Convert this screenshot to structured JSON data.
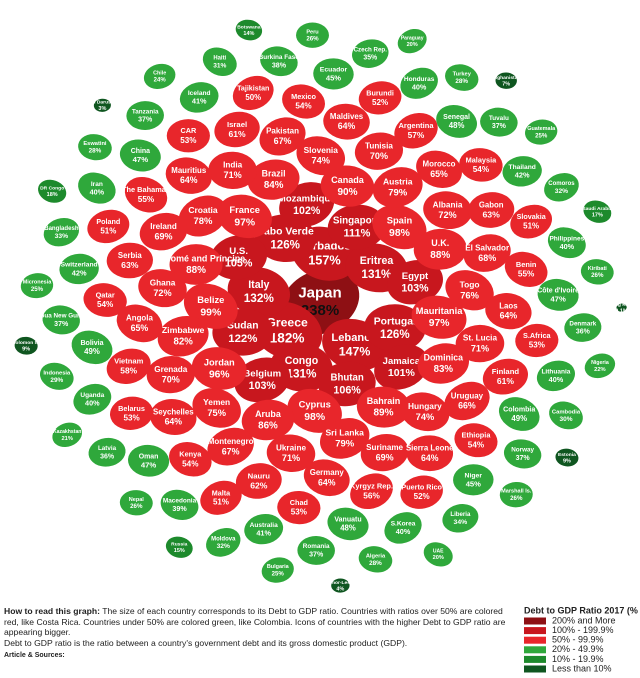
{
  "chart_data": {
    "type": "packed-shapes",
    "legend_title": "Debt to GDP Ratio 2017 (%",
    "series": [
      {
        "name": "200% and More",
        "color": "#8e1014",
        "categories": [
          "Japan"
        ],
        "values": [
          238
        ],
        "value_labels": [
          "238%"
        ]
      },
      {
        "name": "100% - 199.9%",
        "color": "#c8171e",
        "categories": [
          "Greece",
          "Barbados",
          "Lebanon",
          "Italy",
          "Eritrea",
          "Congo",
          "Cabo Verde",
          "Portugal",
          "Sudan",
          "Singapore",
          "Bhutan",
          "U.S.",
          "Egypt",
          "Belgium",
          "Mozambique",
          "Jamaica"
        ],
        "values": [
          182,
          157,
          147,
          132,
          131,
          131,
          126,
          126,
          122,
          111,
          106,
          105,
          103,
          103,
          102,
          101
        ],
        "value_labels": [
          "182%",
          "157%",
          "147%",
          "132%",
          "131%",
          "131%",
          "126%",
          "126%",
          "122%",
          "111%",
          "106%",
          "105%",
          "103%",
          "103%",
          "102%",
          "101%"
        ]
      },
      {
        "name": "50% - 99.9%",
        "color": "#e8262b",
        "categories": [
          "Belize",
          "Spain",
          "Cyprus",
          "France",
          "Mauritania",
          "Jordan",
          "Canada",
          "Bahrain",
          "São Tomé and Príncipe",
          "U.K.",
          "Aruba",
          "Brazil",
          "Dominica",
          "Zimbabwe",
          "Austria",
          "Sri Lanka",
          "Croatia",
          "Togo",
          "Yemen",
          "Slovenia",
          "Hungary",
          "Ghana",
          "Albania",
          "Ukraine",
          "India",
          "St. Lucia",
          "Grenada",
          "Tunisia",
          "Suriname",
          "Ireland",
          "El Salvador",
          "Montenegro",
          "Pakistan",
          "Uruguay",
          "Angola",
          "Morocco",
          "Germany",
          "Mauritius",
          "Laos",
          "Seychelles",
          "Maldives",
          "Sierra Leone",
          "Serbia",
          "Gabon",
          "Nauru",
          "Israel",
          "Finland",
          "Vietnam",
          "Argentina",
          "Kyrgyz Rep.",
          "The Bahamas",
          "Benin",
          "Kenya",
          "Mexico",
          "Ethiopia",
          "Qatar",
          "Malaysia",
          "Chad",
          "CAR",
          "S.Africa",
          "Belarus",
          "Burundi",
          "Puerto Rico",
          "Poland",
          "Slovakia",
          "Malta",
          "Tajikistan"
        ],
        "values": [
          99,
          98,
          98,
          97,
          97,
          96,
          90,
          89,
          88,
          88,
          86,
          84,
          83,
          82,
          79,
          79,
          78,
          76,
          75,
          74,
          74,
          72,
          72,
          71,
          71,
          71,
          70,
          70,
          69,
          69,
          68,
          67,
          67,
          66,
          65,
          65,
          64,
          64,
          64,
          64,
          64,
          64,
          63,
          63,
          62,
          61,
          61,
          58,
          57,
          56,
          55,
          55,
          54,
          54,
          54,
          54,
          54,
          53,
          53,
          53,
          53,
          52,
          52,
          51,
          51,
          51,
          50
        ],
        "value_labels": [
          "99%",
          "98%",
          "98%",
          "97%",
          "97%",
          "96%",
          "90%",
          "89%",
          "88%",
          "88%",
          "86%",
          "84%",
          "83%",
          "82%",
          "79%",
          "79%",
          "78%",
          "76%",
          "75%",
          "74%",
          "74%",
          "72%",
          "72%",
          "71%",
          "71%",
          "71%",
          "70%",
          "70%",
          "69%",
          "69%",
          "68%",
          "67%",
          "67%",
          "66%",
          "65%",
          "65%",
          "64%",
          "64%",
          "64%",
          "64%",
          "64%",
          "64%",
          "63%",
          "63%",
          "62%",
          "61%",
          "61%",
          "58%",
          "57%",
          "56%",
          "55%",
          "55%",
          "54%",
          "54%",
          "54%",
          "54%",
          "54%",
          "53%",
          "53%",
          "53%",
          "53%",
          "52%",
          "52%",
          "51%",
          "51%",
          "51%",
          "50%"
        ]
      },
      {
        "name": "20% - 49.9%",
        "color": "#2fa83b",
        "categories": [
          "Colombia",
          "Bolivia",
          "Senegal",
          "Vanuatu",
          "China",
          "Côte d'Ivoire",
          "Oman",
          "Ecuador",
          "Niger",
          "Switzerland",
          "Thailand",
          "Australia",
          "Iceland",
          "Lithuania",
          "Uganda",
          "Honduras",
          "S.Korea",
          "Iran",
          "Philippines",
          "Macedonia",
          "Burkina Faso",
          "Norway",
          "Papua New Guinea",
          "Tuvalu",
          "Romania",
          "Tanzania",
          "Denmark",
          "Latvia",
          "Czech Rep.",
          "Liberia",
          "Bangladesh",
          "Comoros",
          "Moldova",
          "Haiti",
          "Cambodia",
          "Indonesia",
          "Turkey",
          "Algeria",
          "Eswatini",
          "Kiribati",
          "Nepal",
          "Peru",
          "Marshall Is.",
          "Micronesia",
          "Guatemala",
          "Bulgaria",
          "Chile",
          "Nigeria",
          "Kazakhstan",
          "Paraguay",
          "UAE"
        ],
        "values": [
          49,
          49,
          48,
          48,
          47,
          47,
          47,
          45,
          45,
          42,
          42,
          41,
          41,
          40,
          40,
          40,
          40,
          40,
          40,
          39,
          38,
          37,
          37,
          37,
          37,
          37,
          36,
          36,
          35,
          34,
          33,
          32,
          32,
          31,
          30,
          29,
          28,
          28,
          28,
          26,
          26,
          26,
          26,
          25,
          25,
          25,
          24,
          22,
          21,
          20,
          20
        ],
        "value_labels": [
          "49%",
          "49%",
          "48%",
          "48%",
          "47%",
          "47%",
          "47%",
          "45%",
          "45%",
          "42%",
          "42%",
          "41%",
          "41%",
          "40%",
          "40%",
          "40%",
          "40%",
          "40%",
          "40%",
          "39%",
          "38%",
          "37%",
          "37%",
          "37%",
          "37%",
          "37%",
          "36%",
          "36%",
          "35%",
          "34%",
          "33%",
          "32%",
          "32%",
          "31%",
          "30%",
          "29%",
          "28%",
          "28%",
          "28%",
          "26%",
          "26%",
          "26%",
          "26%",
          "25%",
          "25%",
          "25%",
          "24%",
          "22%",
          "21%",
          "20%",
          "20%"
        ]
      },
      {
        "name": "10% - 19.9%",
        "color": "#1d8a2c",
        "categories": [
          "DR Congo",
          "Saudi Arabia",
          "Russia",
          "Botswana"
        ],
        "values": [
          18,
          17,
          15,
          14
        ],
        "value_labels": [
          "18%",
          "17%",
          "15%",
          "14%"
        ]
      },
      {
        "name": "Less than 10%",
        "color": "#0f5620",
        "categories": [
          "Estonia",
          "Solomon Is.",
          "Afghanistan",
          "Timor-Leste",
          "Brunei Darussalam",
          "Hong Kong"
        ],
        "values": [
          9,
          9,
          7,
          4,
          3,
          0.1
        ],
        "value_labels": [
          "9%",
          "9%",
          "7%",
          "4%",
          "3%",
          "0.1%"
        ]
      }
    ]
  },
  "notes": {
    "how_to_read_label": "How to read this graph:",
    "how_to_read": "The size of each country corresponds to its Debt to GDP ratio. Countries with ratios over 50% are colored red, like Costa Rica. Countries under 50% are colored green, like Colombia. Icons of countries with the higher Debt to GDP ratio are appearing bigger.",
    "definition": "Debt to GDP ratio is the ratio between a country's government debt and its gross domestic product (GDP).",
    "sources": "Article & Sources:"
  }
}
